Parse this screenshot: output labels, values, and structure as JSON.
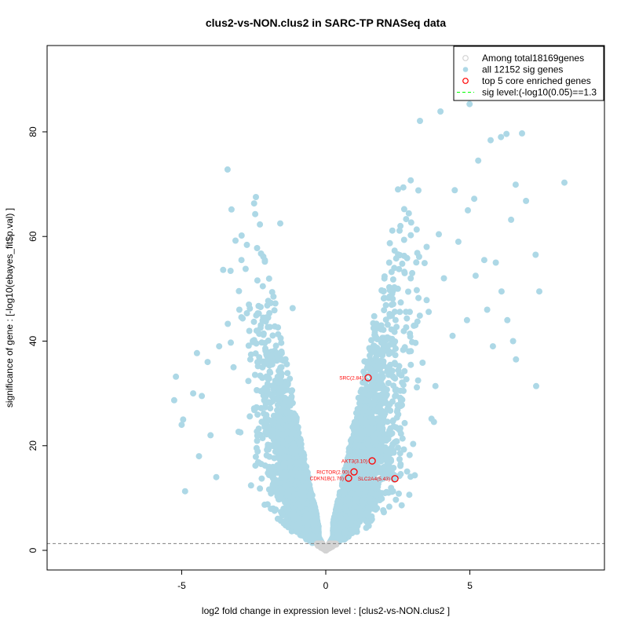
{
  "chart_data": {
    "type": "scatter",
    "title": "clus2-vs-NON.clus2 in SARC-TP RNASeq data",
    "xlabel": "log2 fold change in expression level : [clus2-vs-NON.clus2 ]",
    "ylabel": "significance of gene : [-log10(ebayes_fit$p.val) ]",
    "xlim": [
      -9.67,
      9.67
    ],
    "ylim": [
      -3.75,
      96.5
    ],
    "xticks": [
      -5,
      0,
      5
    ],
    "yticks": [
      0,
      20,
      40,
      60,
      80
    ],
    "grid": false,
    "legend_position": "top-right",
    "legend": [
      {
        "label": "Among total18169genes",
        "marker": "open-circle",
        "color": "#d3d3d3"
      },
      {
        "label": "all 12152 sig genes",
        "marker": "filled-circle",
        "color": "#add8e6"
      },
      {
        "label": "top 5 core enriched genes",
        "marker": "open-circle",
        "color": "#ff0000"
      },
      {
        "label": "sig level:(-log10(0.05)==1.3",
        "marker": "dashed-line",
        "color": "#00ff00"
      }
    ],
    "sig_level": 1.3,
    "colors": {
      "nonsig": "#d3d3d3",
      "sig": "#add8e6",
      "core": "#ff0000",
      "sigline": "#808080"
    },
    "cloud_model": {
      "count": 9000,
      "seed": 7
    },
    "highlight_points": [
      [
        4.99,
        85.3
      ],
      [
        3.98,
        83.9
      ],
      [
        3.27,
        82.1
      ],
      [
        6.81,
        79.7
      ],
      [
        6.27,
        79.6
      ],
      [
        6.08,
        79.0
      ],
      [
        5.72,
        78.4
      ],
      [
        8.28,
        70.3
      ],
      [
        5.29,
        74.5
      ],
      [
        6.59,
        69.9
      ],
      [
        6.95,
        66.8
      ],
      [
        5.15,
        67.2
      ],
      [
        4.93,
        65.0
      ],
      [
        6.43,
        63.2
      ],
      [
        2.59,
        62.0
      ],
      [
        7.28,
        56.5
      ],
      [
        7.41,
        49.5
      ],
      [
        7.3,
        31.4
      ],
      [
        5.5,
        55.5
      ],
      [
        5.9,
        55.0
      ],
      [
        4.6,
        59.0
      ],
      [
        3.5,
        58.0
      ],
      [
        2.2,
        55.0
      ],
      [
        4.1,
        52.0
      ],
      [
        5.2,
        52.5
      ],
      [
        6.1,
        49.5
      ],
      [
        6.3,
        44.0
      ],
      [
        5.6,
        46.0
      ],
      [
        3.0,
        53.0
      ],
      [
        2.5,
        50.0
      ],
      [
        2.0,
        49.5
      ],
      [
        6.5,
        40.0
      ],
      [
        6.6,
        36.5
      ],
      [
        5.8,
        39.0
      ],
      [
        4.9,
        44.0
      ],
      [
        4.4,
        41.0
      ],
      [
        -1.58,
        62.5
      ],
      [
        -2.78,
        53.8
      ],
      [
        -5.2,
        33.2
      ],
      [
        -5.26,
        28.7
      ],
      [
        -4.88,
        11.3
      ],
      [
        -4.47,
        37.7
      ],
      [
        -3.0,
        46.0
      ],
      [
        -1.75,
        47.2
      ],
      [
        -1.15,
        46.3
      ],
      [
        -3.4,
        43.3
      ],
      [
        -2.4,
        42.0
      ],
      [
        -2.0,
        44.5
      ],
      [
        -3.7,
        39.0
      ],
      [
        -4.1,
        36.0
      ],
      [
        -4.6,
        30.0
      ],
      [
        -4.95,
        25.0
      ],
      [
        -4.3,
        29.5
      ],
      [
        -3.2,
        35.0
      ],
      [
        -4.0,
        22.0
      ],
      [
        -4.4,
        18.0
      ],
      [
        -3.8,
        14.0
      ],
      [
        -5.0,
        24.0
      ]
    ],
    "core_genes": [
      {
        "label": "SRC(2.84)",
        "x": 1.47,
        "y": 33.0
      },
      {
        "label": "AKT3(3.10)",
        "x": 1.61,
        "y": 17.1
      },
      {
        "label": "RICTOR(2.00)",
        "x": 0.98,
        "y": 15.0
      },
      {
        "label": "CDKN1B(1.76)",
        "x": 0.79,
        "y": 13.8
      },
      {
        "label": "SLC2A4(5.43)",
        "x": 2.4,
        "y": 13.7
      }
    ]
  }
}
